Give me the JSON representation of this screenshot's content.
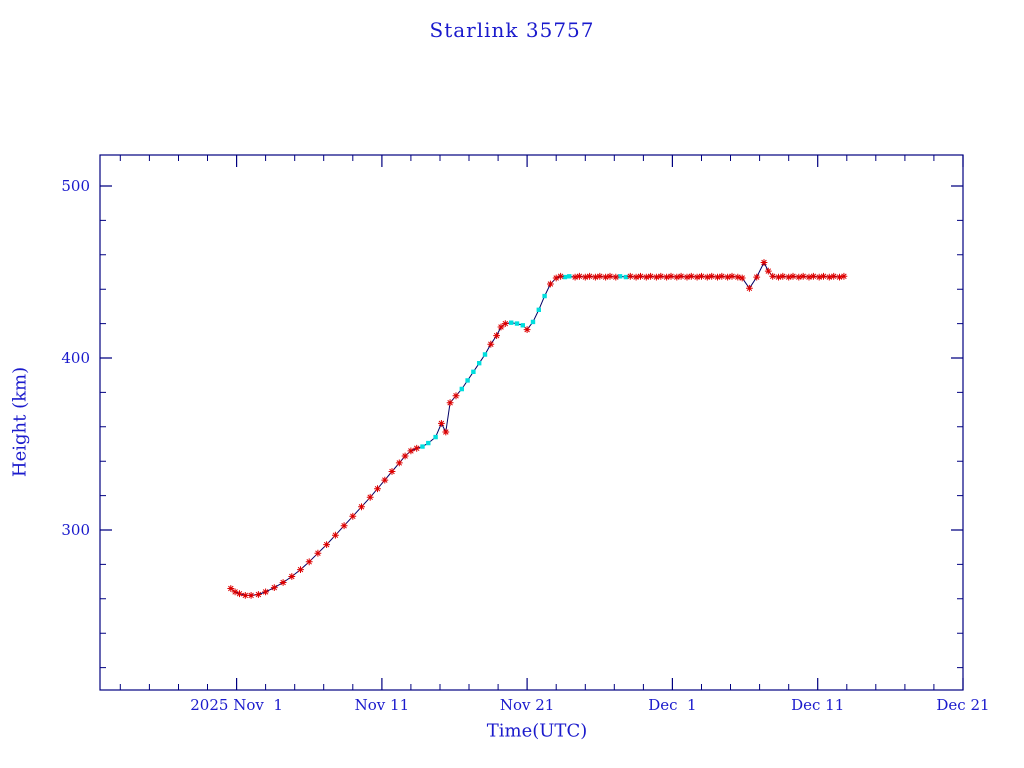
{
  "colors": {
    "text": "#1a1acc",
    "axis": "#000080",
    "line": "#000066",
    "background": "#ffffff"
  },
  "chart_data": {
    "type": "line",
    "title": "Starlink 35757",
    "xlabel": "Time(UTC)",
    "ylabel": "Height (km)",
    "x_unit": "days since 2025 Nov 1 (UTC)",
    "xlim": [
      -9.4,
      50
    ],
    "ylim": [
      207,
      518
    ],
    "x_ticks": [
      {
        "day": 0,
        "label": "2025 Nov  1"
      },
      {
        "day": 10,
        "label": "Nov 11"
      },
      {
        "day": 20,
        "label": "Nov 21"
      },
      {
        "day": 30,
        "label": "Dec  1"
      },
      {
        "day": 40,
        "label": "Dec 11"
      },
      {
        "day": 50,
        "label": "Dec 21"
      }
    ],
    "x_minor_tick_step": 2,
    "y_ticks": [
      {
        "value": 300,
        "label": "300"
      },
      {
        "value": 400,
        "label": "400"
      },
      {
        "value": 500,
        "label": "500"
      }
    ],
    "y_minor_tick_step": 20,
    "grid": false,
    "legend": "none",
    "marker_styles": {
      "r": {
        "shape": "asterisk",
        "color": "#dd0000"
      },
      "c": {
        "shape": "square",
        "color": "#00dede"
      }
    },
    "series": [
      {
        "name": "height-km",
        "line_color": "#000066",
        "points": [
          [
            -0.4,
            266,
            "r"
          ],
          [
            -0.1,
            264,
            "r"
          ],
          [
            0.2,
            263,
            "r"
          ],
          [
            0.6,
            262,
            "r"
          ],
          [
            1.0,
            262,
            "r"
          ],
          [
            1.5,
            262.5,
            "r"
          ],
          [
            2.0,
            264,
            "r"
          ],
          [
            2.6,
            266.5,
            "r"
          ],
          [
            3.2,
            269.5,
            "r"
          ],
          [
            3.8,
            273,
            "r"
          ],
          [
            4.4,
            277,
            "r"
          ],
          [
            5.0,
            281.5,
            "r"
          ],
          [
            5.6,
            286.5,
            "r"
          ],
          [
            6.2,
            291.5,
            "r"
          ],
          [
            6.8,
            297,
            "r"
          ],
          [
            7.4,
            302.5,
            "r"
          ],
          [
            8.0,
            308,
            "r"
          ],
          [
            8.6,
            313.5,
            "r"
          ],
          [
            9.2,
            319,
            "r"
          ],
          [
            9.7,
            324,
            "r"
          ],
          [
            10.2,
            329,
            "r"
          ],
          [
            10.7,
            334,
            "r"
          ],
          [
            11.2,
            339,
            "r"
          ],
          [
            11.6,
            343,
            "r"
          ],
          [
            12.0,
            346,
            "r"
          ],
          [
            12.4,
            347.5,
            "r"
          ],
          [
            12.8,
            348.5,
            "c"
          ],
          [
            13.2,
            350.5,
            "c"
          ],
          [
            13.7,
            354,
            "c"
          ],
          [
            14.1,
            362,
            "r"
          ],
          [
            14.4,
            357,
            "r"
          ],
          [
            14.7,
            374,
            "r"
          ],
          [
            15.1,
            378,
            "r"
          ],
          [
            15.5,
            382,
            "c"
          ],
          [
            15.9,
            387,
            "c"
          ],
          [
            16.3,
            392,
            "c"
          ],
          [
            16.7,
            397,
            "c"
          ],
          [
            17.1,
            402,
            "c"
          ],
          [
            17.5,
            408,
            "r"
          ],
          [
            17.9,
            413,
            "r"
          ],
          [
            18.2,
            418,
            "r"
          ],
          [
            18.5,
            420,
            "r"
          ],
          [
            18.9,
            420.5,
            "c"
          ],
          [
            19.3,
            420,
            "c"
          ],
          [
            19.7,
            419,
            "c"
          ],
          [
            20.0,
            416.5,
            "r"
          ],
          [
            20.4,
            421,
            "c"
          ],
          [
            20.8,
            428,
            "c"
          ],
          [
            21.2,
            436,
            "c"
          ],
          [
            21.6,
            443,
            "r"
          ],
          [
            22.0,
            446.5,
            "r"
          ],
          [
            22.3,
            447.5,
            "r"
          ],
          [
            22.6,
            447,
            "c"
          ],
          [
            22.9,
            447.5,
            "c"
          ],
          [
            23.3,
            447,
            "r"
          ],
          [
            23.6,
            447.5,
            "r"
          ],
          [
            24.0,
            447,
            "r"
          ],
          [
            24.3,
            447.5,
            "r"
          ],
          [
            24.7,
            447,
            "r"
          ],
          [
            25.0,
            447.5,
            "r"
          ],
          [
            25.4,
            447,
            "r"
          ],
          [
            25.7,
            447.5,
            "r"
          ],
          [
            26.1,
            447,
            "r"
          ],
          [
            26.4,
            447.5,
            "c"
          ],
          [
            26.8,
            447,
            "c"
          ],
          [
            27.1,
            447.5,
            "r"
          ],
          [
            27.5,
            447,
            "r"
          ],
          [
            27.8,
            447.5,
            "r"
          ],
          [
            28.2,
            447,
            "r"
          ],
          [
            28.5,
            447.5,
            "r"
          ],
          [
            28.9,
            447,
            "r"
          ],
          [
            29.2,
            447.5,
            "r"
          ],
          [
            29.6,
            447,
            "r"
          ],
          [
            29.9,
            447.5,
            "r"
          ],
          [
            30.3,
            447,
            "r"
          ],
          [
            30.6,
            447.5,
            "r"
          ],
          [
            31.0,
            447,
            "r"
          ],
          [
            31.3,
            447.5,
            "r"
          ],
          [
            31.7,
            447,
            "r"
          ],
          [
            32.0,
            447.5,
            "r"
          ],
          [
            32.4,
            447,
            "r"
          ],
          [
            32.7,
            447.5,
            "r"
          ],
          [
            33.1,
            447,
            "r"
          ],
          [
            33.4,
            447.5,
            "r"
          ],
          [
            33.8,
            447,
            "r"
          ],
          [
            34.1,
            447.5,
            "r"
          ],
          [
            34.5,
            447,
            "r"
          ],
          [
            34.8,
            446.5,
            "r"
          ],
          [
            35.3,
            440.5,
            "r"
          ],
          [
            35.8,
            447,
            "r"
          ],
          [
            36.3,
            455.5,
            "r"
          ],
          [
            36.6,
            450.5,
            "r"
          ],
          [
            36.9,
            447.5,
            "r"
          ],
          [
            37.3,
            447,
            "r"
          ],
          [
            37.6,
            447.5,
            "r"
          ],
          [
            38.0,
            447,
            "r"
          ],
          [
            38.3,
            447.5,
            "r"
          ],
          [
            38.7,
            447,
            "r"
          ],
          [
            39.0,
            447.5,
            "r"
          ],
          [
            39.4,
            447,
            "r"
          ],
          [
            39.7,
            447.5,
            "r"
          ],
          [
            40.1,
            447,
            "r"
          ],
          [
            40.4,
            447.5,
            "r"
          ],
          [
            40.8,
            447,
            "r"
          ],
          [
            41.1,
            447.5,
            "r"
          ],
          [
            41.5,
            447,
            "r"
          ],
          [
            41.8,
            447.5,
            "r"
          ]
        ]
      }
    ]
  }
}
